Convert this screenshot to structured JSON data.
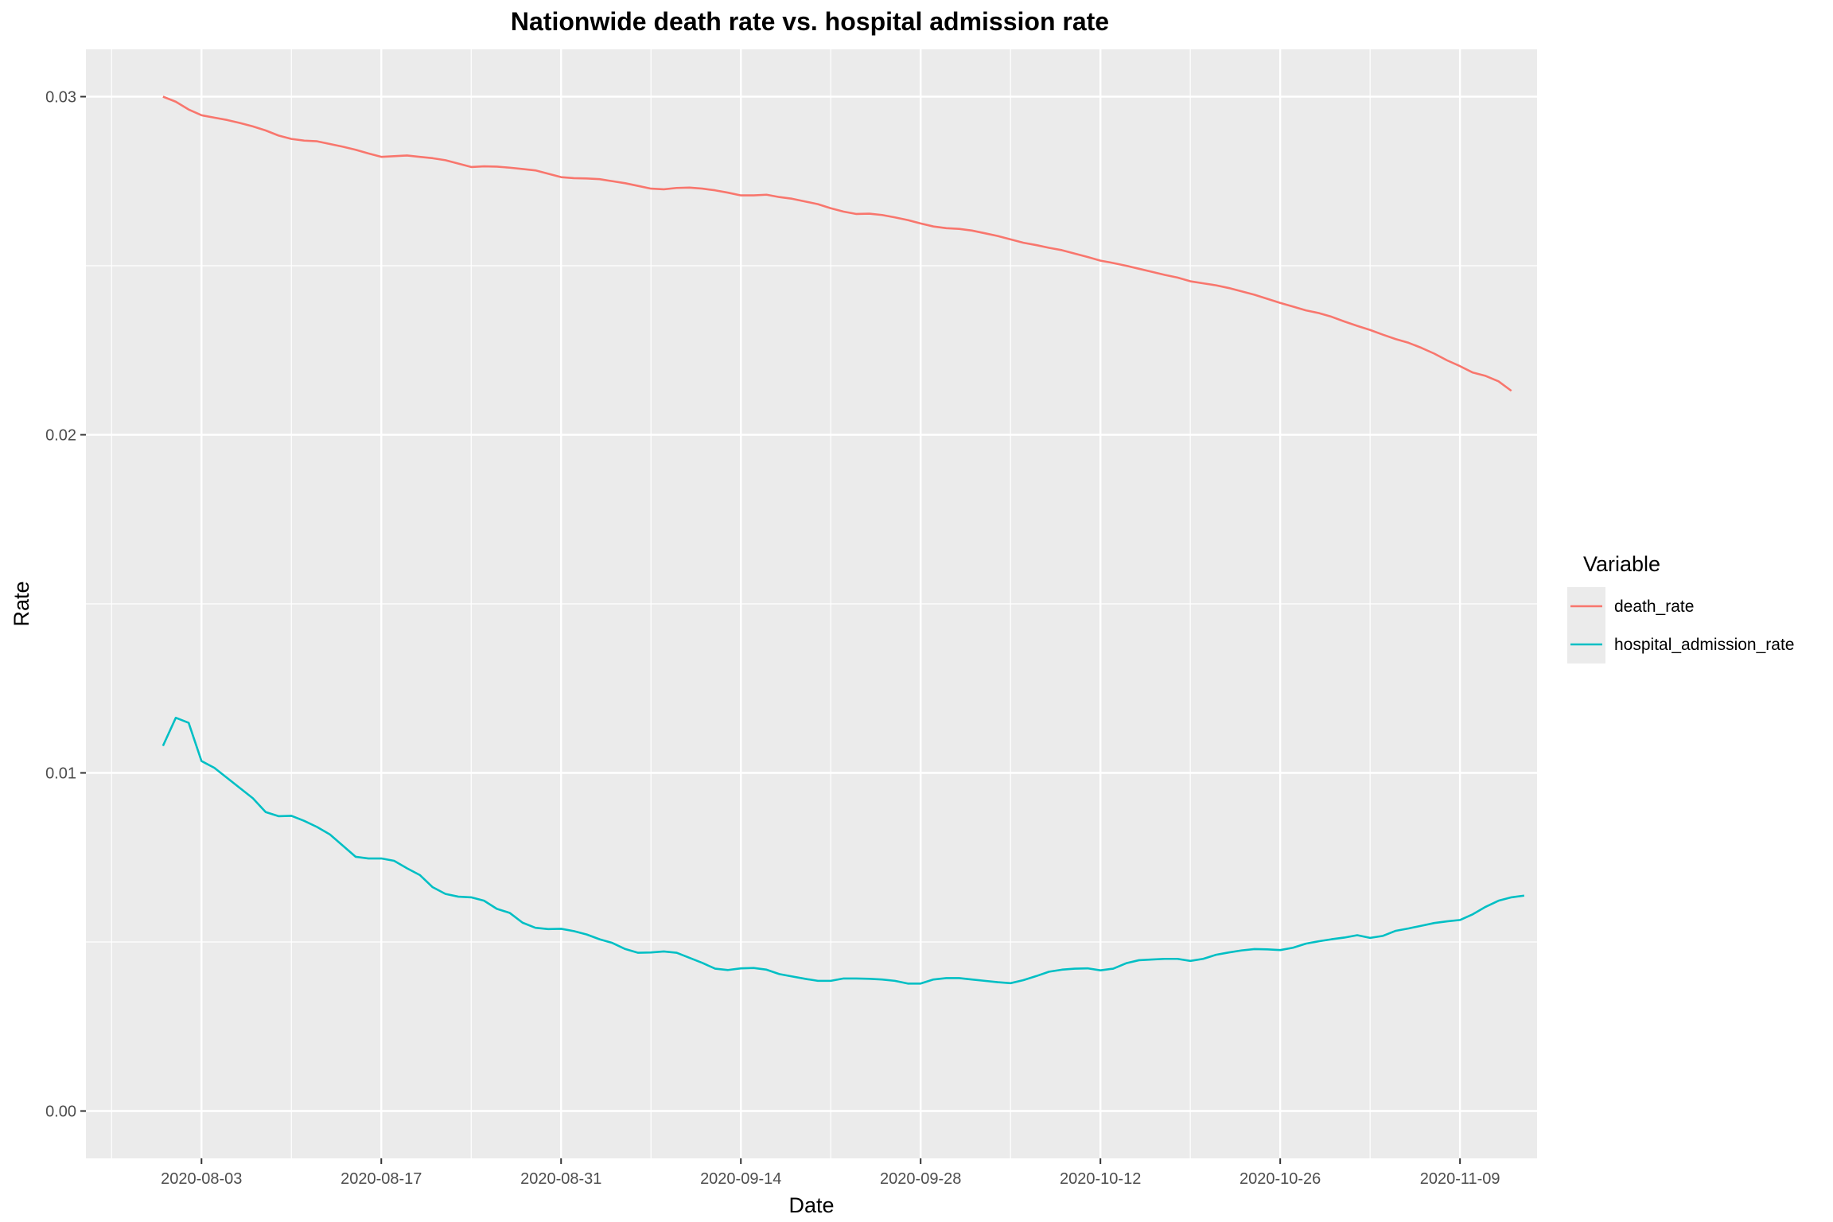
{
  "chart_data": {
    "type": "line",
    "title": "Nationwide death rate vs. hospital admission rate",
    "xlabel": "Date",
    "ylabel": "Rate",
    "x_start": "2020-07-31",
    "x_end": "2020-11-11",
    "xlim_days": [
      -6,
      107
    ],
    "ylim": [
      -0.0014,
      0.0314
    ],
    "x_ticks": [
      {
        "day": 3,
        "label": "2020-08-03"
      },
      {
        "day": 17,
        "label": "2020-08-17"
      },
      {
        "day": 31,
        "label": "2020-08-31"
      },
      {
        "day": 45,
        "label": "2020-09-14"
      },
      {
        "day": 59,
        "label": "2020-09-28"
      },
      {
        "day": 73,
        "label": "2020-10-12"
      },
      {
        "day": 87,
        "label": "2020-10-26"
      },
      {
        "day": 101,
        "label": "2020-11-09"
      }
    ],
    "y_ticks": [
      {
        "value": 0.0,
        "label": "0.00"
      },
      {
        "value": 0.01,
        "label": "0.01"
      },
      {
        "value": 0.02,
        "label": "0.02"
      },
      {
        "value": 0.03,
        "label": "0.03"
      }
    ],
    "legend": {
      "title": "Variable",
      "position": "right"
    },
    "series": [
      {
        "name": "death_rate",
        "color": "#F8766D",
        "values": [
          0.03,
          0.02985,
          0.02962,
          0.02945,
          0.02938,
          0.02931,
          0.02922,
          0.02912,
          0.029,
          0.02885,
          0.02875,
          0.0287,
          0.02868,
          0.0286,
          0.02852,
          0.02843,
          0.02832,
          0.02822,
          0.02824,
          0.02826,
          0.02822,
          0.02818,
          0.02812,
          0.02802,
          0.02792,
          0.02794,
          0.02793,
          0.0279,
          0.02786,
          0.02782,
          0.02772,
          0.02762,
          0.02759,
          0.02758,
          0.02756,
          0.0275,
          0.02744,
          0.02736,
          0.02728,
          0.02726,
          0.0273,
          0.02731,
          0.02728,
          0.02723,
          0.02716,
          0.02708,
          0.02708,
          0.0271,
          0.02703,
          0.02698,
          0.0269,
          0.02682,
          0.0267,
          0.0266,
          0.02653,
          0.02654,
          0.0265,
          0.02643,
          0.02635,
          0.02625,
          0.02616,
          0.02611,
          0.02609,
          0.02604,
          0.02596,
          0.02588,
          0.02578,
          0.02568,
          0.02561,
          0.02553,
          0.02546,
          0.02536,
          0.02526,
          0.02515,
          0.02508,
          0.025,
          0.02491,
          0.02482,
          0.02473,
          0.02465,
          0.02454,
          0.02448,
          0.02442,
          0.02434,
          0.02424,
          0.02414,
          0.02402,
          0.0239,
          0.02379,
          0.02368,
          0.0236,
          0.02349,
          0.02335,
          0.02322,
          0.0231,
          0.02296,
          0.02283,
          0.02272,
          0.02257,
          0.0224,
          0.0222,
          0.02203,
          0.02184,
          0.02174,
          0.02158,
          0.0213
        ]
      },
      {
        "name": "hospital_admission_rate",
        "color": "#00BFC4",
        "values": [
          0.0108,
          0.01163,
          0.01148,
          0.01035,
          0.01015,
          0.00985,
          0.00955,
          0.00925,
          0.00884,
          0.00872,
          0.00873,
          0.00858,
          0.0084,
          0.00818,
          0.00785,
          0.00752,
          0.00747,
          0.00747,
          0.0074,
          0.00718,
          0.00698,
          0.00662,
          0.00642,
          0.00634,
          0.00632,
          0.00622,
          0.00598,
          0.00586,
          0.00557,
          0.00542,
          0.00538,
          0.00539,
          0.00532,
          0.00522,
          0.00508,
          0.00497,
          0.00479,
          0.00468,
          0.00469,
          0.00472,
          0.00468,
          0.00453,
          0.00438,
          0.00421,
          0.00417,
          0.00422,
          0.00423,
          0.00418,
          0.00405,
          0.00398,
          0.00391,
          0.00385,
          0.00385,
          0.00392,
          0.00392,
          0.00391,
          0.00389,
          0.00385,
          0.00377,
          0.00377,
          0.00389,
          0.00393,
          0.00393,
          0.00389,
          0.00385,
          0.00381,
          0.00378,
          0.00387,
          0.00399,
          0.00412,
          0.00418,
          0.00421,
          0.00422,
          0.00416,
          0.00421,
          0.00437,
          0.00446,
          0.00448,
          0.0045,
          0.0045,
          0.00444,
          0.0045,
          0.00462,
          0.00469,
          0.00475,
          0.00479,
          0.00478,
          0.00476,
          0.00483,
          0.00495,
          0.00502,
          0.00508,
          0.00513,
          0.0052,
          0.00512,
          0.00518,
          0.00533,
          0.0054,
          0.00548,
          0.00556,
          0.00561,
          0.00565,
          0.00582,
          0.00604,
          0.00622,
          0.00632,
          0.00637
        ]
      }
    ]
  }
}
